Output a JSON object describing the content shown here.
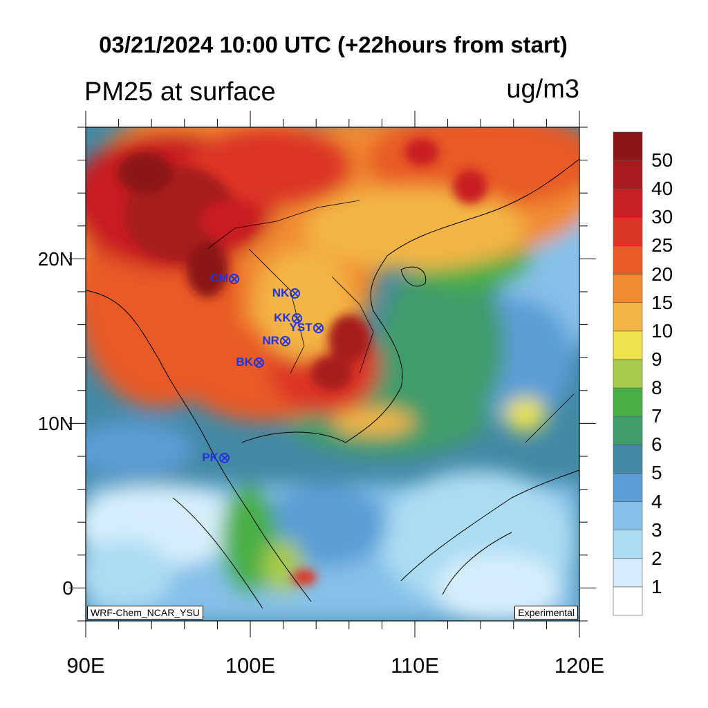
{
  "title": "03/21/2024 10:00 UTC (+22hours from start)",
  "left_title": "PM25 at surface",
  "units": "ug/m3",
  "watermark_left": "WRF-Chem_NCAR_YSU",
  "watermark_right": "Experimental",
  "x_axis": {
    "ticks": [
      "90E",
      "100E",
      "110E",
      "120E"
    ]
  },
  "y_axis": {
    "ticks": [
      "0",
      "10N",
      "20N"
    ]
  },
  "colorbar": {
    "levels": [
      "1",
      "2",
      "3",
      "4",
      "5",
      "6",
      "7",
      "8",
      "9",
      "10",
      "15",
      "20",
      "25",
      "30",
      "40",
      "50"
    ],
    "colors": [
      "#ffffff",
      "#d6eefb",
      "#abdcf3",
      "#84c0e8",
      "#5b9dd6",
      "#4389a6",
      "#3f9c6b",
      "#4aaf47",
      "#a8ca4c",
      "#ece34f",
      "#f3b545",
      "#f08b31",
      "#e85a26",
      "#dc3626",
      "#c81f24",
      "#a71b1e",
      "#8c1518"
    ]
  },
  "stations": [
    {
      "label": "CM",
      "lon": 99.0,
      "lat": 18.8
    },
    {
      "label": "NK",
      "lon": 102.7,
      "lat": 17.9
    },
    {
      "label": "KK",
      "lon": 102.8,
      "lat": 16.4
    },
    {
      "label": "YST",
      "lon": 104.1,
      "lat": 15.8
    },
    {
      "label": "NR",
      "lon": 102.1,
      "lat": 15.0
    },
    {
      "label": "BK",
      "lon": 100.5,
      "lat": 13.7
    },
    {
      "label": "PK",
      "lon": 98.4,
      "lat": 7.9
    }
  ],
  "map": {
    "lon_range": [
      90,
      120
    ],
    "lat_range": [
      -2,
      28
    ]
  }
}
